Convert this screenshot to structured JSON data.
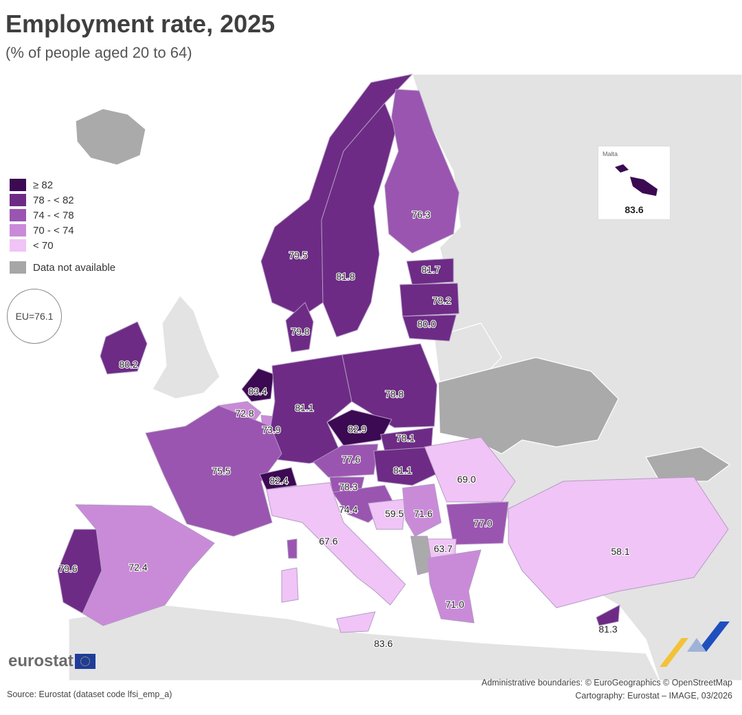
{
  "title": "Employment rate, 2025",
  "subtitle": "(% of people aged 20 to 64)",
  "legend": {
    "items": [
      {
        "label": "≥ 82",
        "color": "#3b0a52"
      },
      {
        "label": "78 - < 82",
        "color": "#6d2b85"
      },
      {
        "label": "74 - < 78",
        "color": "#9a55b0"
      },
      {
        "label": "70 - < 74",
        "color": "#c98bd8"
      },
      {
        "label": "< 70",
        "color": "#f0c4f6"
      }
    ],
    "na_label": "Data not available",
    "na_color": "#a6a6a6"
  },
  "eu_average": "EU=76.1",
  "inset": {
    "name": "Malta",
    "value": "83.6"
  },
  "values": {
    "finland": "76.3",
    "norway": "79.5",
    "sweden": "81.8",
    "estonia": "81.7",
    "latvia": "78.2",
    "lithuania": "80.0",
    "denmark": "79.8",
    "ireland": "80.2",
    "netherlands": "83.4",
    "belgium": "72.8",
    "luxembourg": "73.9",
    "germany": "81.1",
    "poland": "78.8",
    "czechia": "82.9",
    "slovakia": "78.1",
    "austria": "77.6",
    "hungary": "81.1",
    "france": "75.5",
    "switzerland": "82.4",
    "slovenia": "78.3",
    "croatia": "74.4",
    "bosnia": "59.5",
    "serbia": "71.6",
    "romania": "69.0",
    "bulgaria": "77.0",
    "north_macedonia": "63.7",
    "italy": "67.6",
    "portugal": "79.6",
    "spain": "72.4",
    "greece": "71.0",
    "turkey": "58.1",
    "cyprus": "81.3",
    "malta_main": "83.6"
  },
  "brand": "eurostat",
  "source": "Source: Eurostat (dataset code lfsi_emp_a)",
  "credits": {
    "line1": "Administrative boundaries: © EuroGeographics © OpenStreetMap",
    "line2": "Cartography: Eurostat – IMAGE, 03/2026"
  }
}
